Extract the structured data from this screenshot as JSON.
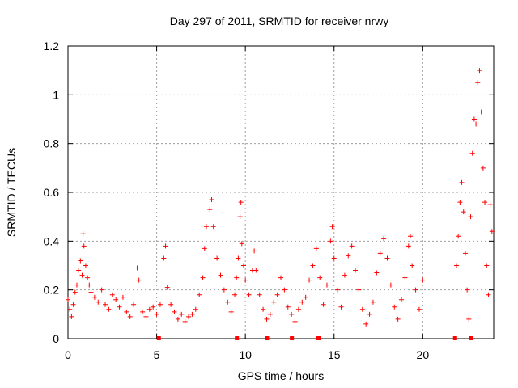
{
  "chart_data": {
    "type": "scatter",
    "title": "Day 297 of 2011, SRMTID for receiver nrwy",
    "xlabel": "GPS time / hours",
    "ylabel": "SRMTID / TECUs",
    "xlim": [
      0,
      24
    ],
    "ylim": [
      0,
      1.2
    ],
    "grid": true,
    "x_ticks": [
      0,
      5,
      10,
      15,
      20
    ],
    "x_tick_labels": [
      "0",
      "5",
      "10",
      "15",
      "20"
    ],
    "y_ticks": [
      0,
      0.2,
      0.4,
      0.6,
      0.8,
      1,
      1.2
    ],
    "y_tick_labels": [
      "0",
      "0.2",
      "0.4",
      "0.6",
      "0.8",
      "1",
      "1.2"
    ],
    "marker": "+",
    "color": "#ff0000",
    "series": [
      {
        "name": "SRMTID",
        "points": [
          [
            0.0,
            0.16
          ],
          [
            0.1,
            0.12
          ],
          [
            0.2,
            0.09
          ],
          [
            0.3,
            0.14
          ],
          [
            0.4,
            0.19
          ],
          [
            0.5,
            0.22
          ],
          [
            0.6,
            0.28
          ],
          [
            0.7,
            0.32
          ],
          [
            0.8,
            0.26
          ],
          [
            0.85,
            0.43
          ],
          [
            0.9,
            0.38
          ],
          [
            1.0,
            0.3
          ],
          [
            1.1,
            0.25
          ],
          [
            1.2,
            0.22
          ],
          [
            1.3,
            0.19
          ],
          [
            1.5,
            0.17
          ],
          [
            1.7,
            0.15
          ],
          [
            1.9,
            0.2
          ],
          [
            2.1,
            0.14
          ],
          [
            2.3,
            0.12
          ],
          [
            2.5,
            0.18
          ],
          [
            2.7,
            0.16
          ],
          [
            2.9,
            0.13
          ],
          [
            3.1,
            0.17
          ],
          [
            3.3,
            0.11
          ],
          [
            3.5,
            0.09
          ],
          [
            3.7,
            0.14
          ],
          [
            3.9,
            0.29
          ],
          [
            4.0,
            0.24
          ],
          [
            4.2,
            0.11
          ],
          [
            4.4,
            0.09
          ],
          [
            4.6,
            0.12
          ],
          [
            4.8,
            0.13
          ],
          [
            5.0,
            0.1
          ],
          [
            5.2,
            0.14
          ],
          [
            5.4,
            0.33
          ],
          [
            5.5,
            0.38
          ],
          [
            5.6,
            0.21
          ],
          [
            5.8,
            0.14
          ],
          [
            6.0,
            0.11
          ],
          [
            6.2,
            0.08
          ],
          [
            6.4,
            0.1
          ],
          [
            6.6,
            0.07
          ],
          [
            6.8,
            0.09
          ],
          [
            7.0,
            0.1
          ],
          [
            7.2,
            0.12
          ],
          [
            7.4,
            0.18
          ],
          [
            7.6,
            0.25
          ],
          [
            7.7,
            0.37
          ],
          [
            7.8,
            0.46
          ],
          [
            8.0,
            0.53
          ],
          [
            8.1,
            0.57
          ],
          [
            8.2,
            0.46
          ],
          [
            8.4,
            0.33
          ],
          [
            8.6,
            0.26
          ],
          [
            8.8,
            0.2
          ],
          [
            9.0,
            0.15
          ],
          [
            9.2,
            0.11
          ],
          [
            9.4,
            0.18
          ],
          [
            9.5,
            0.25
          ],
          [
            9.6,
            0.33
          ],
          [
            9.7,
            0.5
          ],
          [
            9.75,
            0.56
          ],
          [
            9.8,
            0.39
          ],
          [
            9.9,
            0.3
          ],
          [
            10.0,
            0.24
          ],
          [
            10.2,
            0.18
          ],
          [
            10.4,
            0.28
          ],
          [
            10.5,
            0.36
          ],
          [
            10.6,
            0.28
          ],
          [
            10.8,
            0.18
          ],
          [
            11.0,
            0.12
          ],
          [
            11.2,
            0.08
          ],
          [
            11.4,
            0.1
          ],
          [
            11.6,
            0.15
          ],
          [
            11.8,
            0.18
          ],
          [
            12.0,
            0.25
          ],
          [
            12.2,
            0.2
          ],
          [
            12.4,
            0.13
          ],
          [
            12.6,
            0.1
          ],
          [
            12.8,
            0.07
          ],
          [
            13.0,
            0.12
          ],
          [
            13.2,
            0.15
          ],
          [
            13.4,
            0.17
          ],
          [
            13.6,
            0.24
          ],
          [
            13.8,
            0.3
          ],
          [
            14.0,
            0.37
          ],
          [
            14.2,
            0.25
          ],
          [
            14.4,
            0.14
          ],
          [
            14.6,
            0.22
          ],
          [
            14.8,
            0.4
          ],
          [
            14.9,
            0.46
          ],
          [
            15.0,
            0.33
          ],
          [
            15.2,
            0.2
          ],
          [
            15.4,
            0.13
          ],
          [
            15.6,
            0.26
          ],
          [
            15.8,
            0.34
          ],
          [
            16.0,
            0.38
          ],
          [
            16.2,
            0.28
          ],
          [
            16.4,
            0.2
          ],
          [
            16.6,
            0.12
          ],
          [
            16.8,
            0.06
          ],
          [
            17.0,
            0.1
          ],
          [
            17.2,
            0.15
          ],
          [
            17.4,
            0.27
          ],
          [
            17.6,
            0.35
          ],
          [
            17.8,
            0.41
          ],
          [
            18.0,
            0.33
          ],
          [
            18.2,
            0.22
          ],
          [
            18.4,
            0.13
          ],
          [
            18.6,
            0.08
          ],
          [
            18.8,
            0.16
          ],
          [
            19.0,
            0.25
          ],
          [
            19.2,
            0.38
          ],
          [
            19.3,
            0.42
          ],
          [
            19.4,
            0.3
          ],
          [
            19.6,
            0.2
          ],
          [
            19.8,
            0.12
          ],
          [
            20.0,
            0.24
          ],
          [
            21.9,
            0.3
          ],
          [
            22.0,
            0.42
          ],
          [
            22.1,
            0.56
          ],
          [
            22.2,
            0.64
          ],
          [
            22.3,
            0.52
          ],
          [
            22.4,
            0.35
          ],
          [
            22.5,
            0.2
          ],
          [
            22.6,
            0.08
          ],
          [
            22.7,
            0.5
          ],
          [
            22.8,
            0.76
          ],
          [
            22.9,
            0.9
          ],
          [
            23.0,
            0.88
          ],
          [
            23.1,
            1.05
          ],
          [
            23.2,
            1.1
          ],
          [
            23.3,
            0.93
          ],
          [
            23.4,
            0.7
          ],
          [
            23.5,
            0.56
          ],
          [
            23.6,
            0.3
          ],
          [
            23.7,
            0.18
          ],
          [
            23.8,
            0.55
          ],
          [
            23.9,
            0.44
          ]
        ]
      }
    ],
    "bottom_markers": [
      5.1,
      9.5,
      11.2,
      12.6,
      14.1,
      21.8,
      22.7
    ]
  }
}
